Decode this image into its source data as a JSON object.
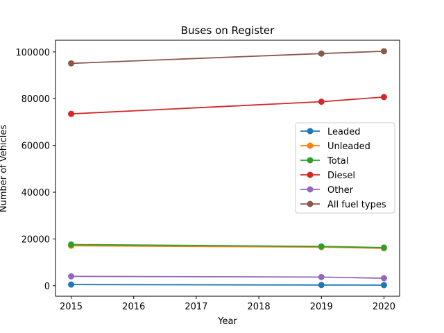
{
  "chart_data": {
    "type": "line",
    "title": "Buses on Register",
    "xlabel": "Year",
    "ylabel": "Number of Vehicles",
    "x": [
      2015,
      2019,
      2020
    ],
    "xticks": [
      2015,
      2016,
      2017,
      2018,
      2019,
      2020
    ],
    "yticks": [
      0,
      20000,
      40000,
      60000,
      80000,
      100000
    ],
    "xlim": [
      2014.75,
      2020.25
    ],
    "ylim": [
      -4500,
      105000
    ],
    "grid": false,
    "legend_position": "center-right",
    "series": [
      {
        "name": "Leaded",
        "color": "#1f77b4",
        "values": [
          500,
          300,
          250
        ]
      },
      {
        "name": "Unleaded",
        "color": "#ff7f0e",
        "values": [
          17100,
          16500,
          16000
        ]
      },
      {
        "name": "Total",
        "color": "#2ca02c",
        "values": [
          17600,
          16800,
          16300
        ]
      },
      {
        "name": "Diesel",
        "color": "#d62728",
        "values": [
          73500,
          78700,
          80700
        ]
      },
      {
        "name": "Other",
        "color": "#9467bd",
        "values": [
          4000,
          3700,
          3200
        ]
      },
      {
        "name": "All fuel types",
        "color": "#8c564b",
        "values": [
          95100,
          99300,
          100300
        ]
      }
    ]
  }
}
